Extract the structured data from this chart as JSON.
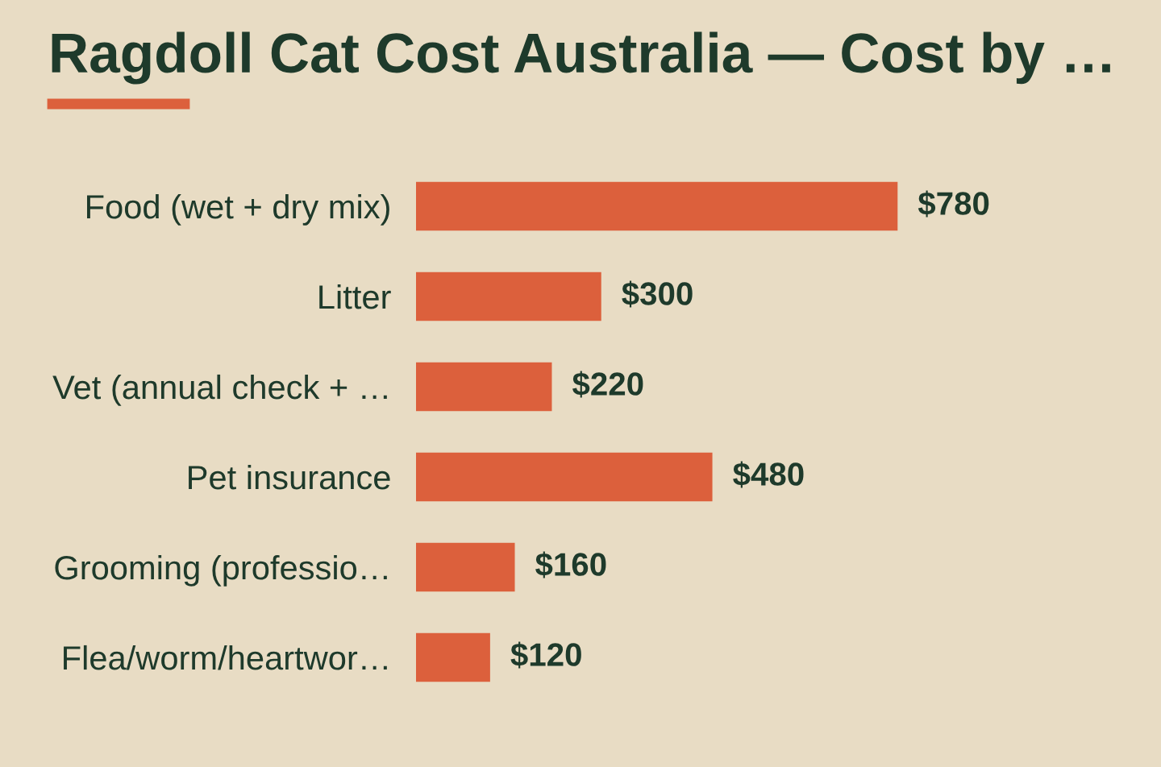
{
  "chart_data": {
    "type": "bar",
    "orientation": "horizontal",
    "title": "Ragdoll Cat Cost Australia — Cost by …",
    "categories": [
      "Food (wet + dry mix)",
      "Litter",
      "Vet (annual check + …",
      "Pet insurance",
      "Grooming (professio…",
      "Flea/worm/heartwor…"
    ],
    "values": [
      780,
      300,
      220,
      480,
      160,
      120
    ],
    "value_labels": [
      "$780",
      "$300",
      "$220",
      "$480",
      "$160",
      "$120"
    ],
    "color": "#dc603c",
    "grid": false,
    "legend": false
  }
}
